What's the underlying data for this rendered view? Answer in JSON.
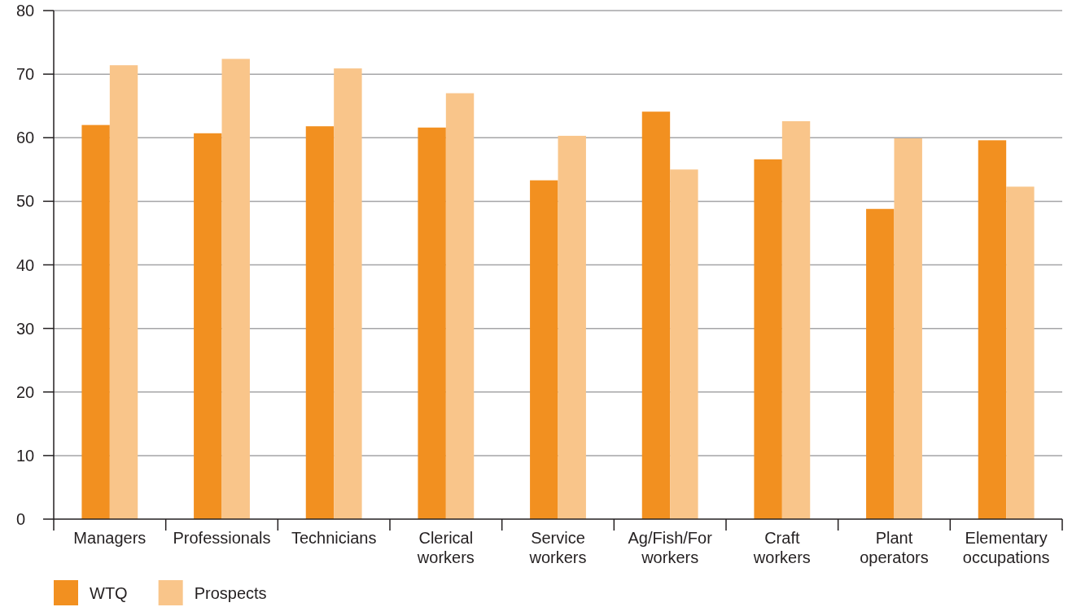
{
  "chart_data": {
    "type": "bar",
    "categories": [
      "Managers",
      "Professionals",
      "Technicians",
      "Clerical workers",
      "Service workers",
      "Ag/Fish/For workers",
      "Craft workers",
      "Plant operators",
      "Elementary occupations"
    ],
    "series": [
      {
        "name": "WTQ",
        "color": "#f29020",
        "values": [
          62.0,
          60.7,
          61.8,
          61.6,
          53.3,
          64.1,
          56.6,
          48.8,
          59.6
        ]
      },
      {
        "name": "Prospects",
        "color": "#f9c58a",
        "values": [
          71.4,
          72.4,
          70.9,
          67.0,
          60.3,
          55.0,
          62.6,
          59.9,
          52.3
        ]
      }
    ],
    "ylim": [
      0,
      80
    ],
    "yticks": [
      0,
      10,
      20,
      30,
      40,
      50,
      60,
      70,
      80
    ],
    "grid": "y",
    "legend": "bottom left"
  }
}
